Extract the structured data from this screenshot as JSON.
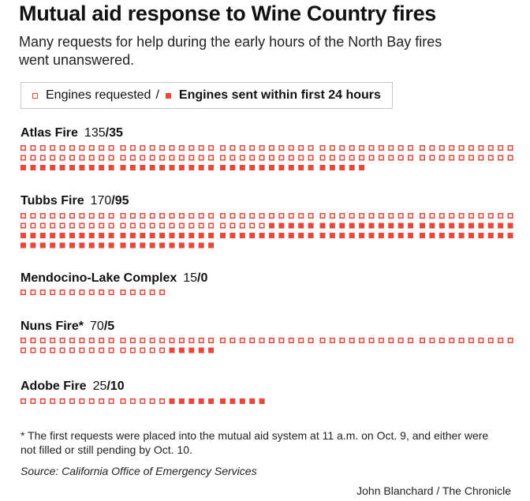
{
  "title": "Mutual aid response to Wine Country fires",
  "subtitle": "Many requests for help during the early hours of the North Bay fires went unanswered.",
  "legend": {
    "requested": "Engines requested",
    "separator": "/",
    "sent": "Engines sent within first 24 hours"
  },
  "colors": {
    "accent": "#e8473a"
  },
  "chart_data": {
    "type": "waffle",
    "title": "Mutual aid response to Wine Country fires",
    "legend": [
      "Engines requested",
      "Engines sent within first 24 hours"
    ],
    "series": [
      {
        "name": "Atlas Fire",
        "requested": 135,
        "sent": 35,
        "label": "135/35"
      },
      {
        "name": "Tubbs Fire",
        "requested": 170,
        "sent": 95,
        "label": "170/95"
      },
      {
        "name": "Mendocino-Lake Complex",
        "requested": 15,
        "sent": 0,
        "label": "15/0"
      },
      {
        "name": "Nuns Fire*",
        "requested": 70,
        "sent": 5,
        "label": "70/5"
      },
      {
        "name": "Adobe Fire",
        "requested": 25,
        "sent": 10,
        "label": "25/10"
      }
    ]
  },
  "footnote": "* The first requests were placed into the mutual aid system at 11 a.m. on Oct. 9, and either were not filled or still pending by Oct. 10.",
  "source": "Source: California Office of Emergency Services",
  "credit": "John Blanchard / The Chronicle"
}
